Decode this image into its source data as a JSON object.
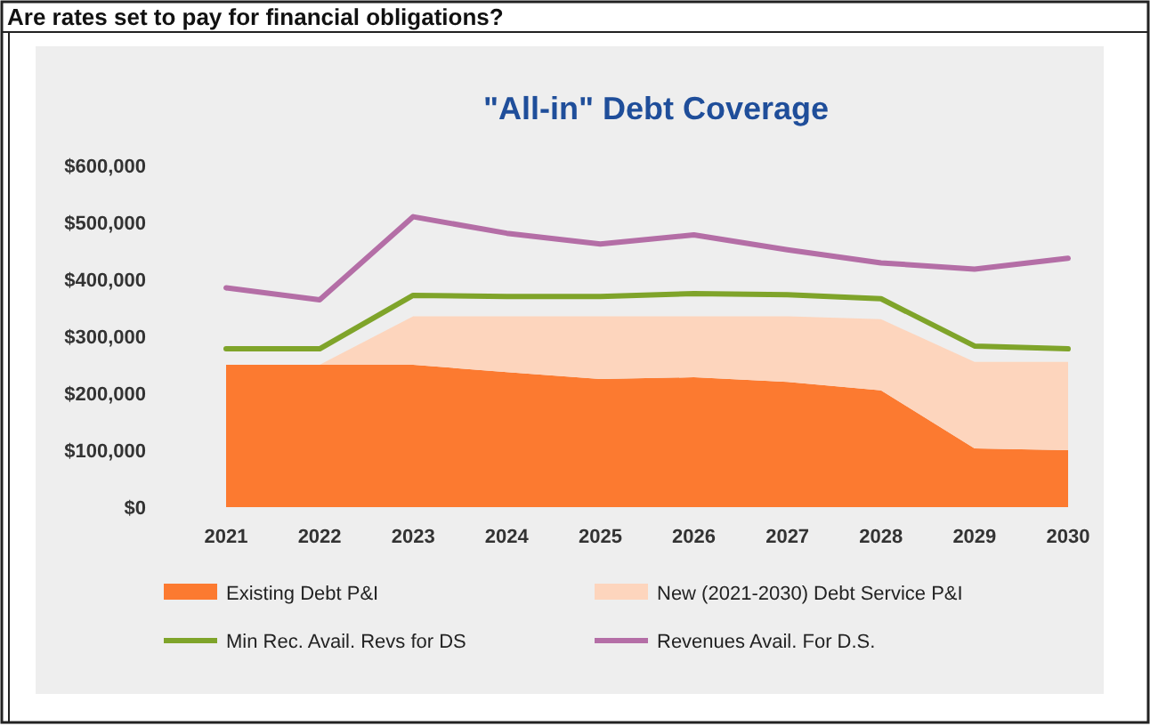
{
  "chart_data": {
    "type": "area",
    "stacked": true,
    "title": "\"All-in\" Debt Coverage",
    "annotations": [
      "Are rates set to pay for financial obligations?"
    ],
    "categories": [
      "2021",
      "2022",
      "2023",
      "2024",
      "2025",
      "2026",
      "2027",
      "2028",
      "2029",
      "2030"
    ],
    "ylim": [
      0,
      600000
    ],
    "yticks": [
      {
        "value": 0,
        "label": "$0"
      },
      {
        "value": 100000,
        "label": "$100,000"
      },
      {
        "value": 200000,
        "label": "$200,000"
      },
      {
        "value": 300000,
        "label": "$300,000"
      },
      {
        "value": 400000,
        "label": "$400,000"
      },
      {
        "value": 500000,
        "label": "$500,000"
      },
      {
        "value": 600000,
        "label": "$600,000"
      }
    ],
    "grid": false,
    "legend": "bottom",
    "series": [
      {
        "name": "Existing Debt P&I",
        "color": "#fc7a30",
        "values": [
          250000,
          250000,
          250000,
          237000,
          225000,
          228000,
          220000,
          205000,
          103000,
          100000
        ]
      },
      {
        "name": "New (2021-2030) Debt Service P&I",
        "color": "#fdd5bd",
        "values": [
          0,
          0,
          85000,
          98000,
          110000,
          107000,
          115000,
          125000,
          152000,
          155000
        ]
      },
      {
        "name": "Min Rec. Avail. Revs for DS",
        "type": "line",
        "color": "#7fa42a",
        "values": [
          278000,
          278000,
          372000,
          370000,
          370000,
          375000,
          373000,
          366000,
          283000,
          278000
        ]
      },
      {
        "name": "Revenues Avail. For D.S.",
        "type": "line",
        "color": "#b46ea6",
        "values": [
          385000,
          364000,
          510000,
          481000,
          462000,
          478000,
          452000,
          429000,
          418000,
          437000
        ]
      }
    ]
  }
}
